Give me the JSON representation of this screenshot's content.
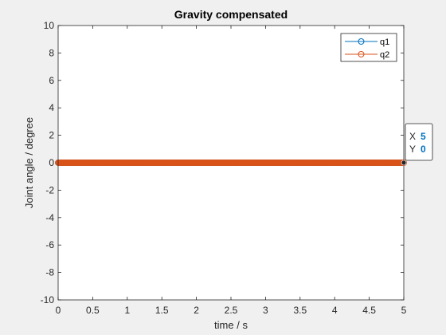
{
  "chart_data": {
    "type": "line",
    "title": "Gravity compensated",
    "xlabel": "time / s",
    "ylabel": "Joint angle / degree",
    "xlim": [
      0,
      5
    ],
    "ylim": [
      -10,
      10
    ],
    "xticks": [
      0,
      0.5,
      1,
      1.5,
      2,
      2.5,
      3,
      3.5,
      4,
      4.5,
      5
    ],
    "xtick_labels": [
      "0",
      "0.5",
      "1",
      "1.5",
      "2",
      "2.5",
      "3",
      "3.5",
      "4",
      "4.5",
      "5"
    ],
    "yticks": [
      -10,
      -8,
      -6,
      -4,
      -2,
      0,
      2,
      4,
      6,
      8,
      10
    ],
    "ytick_labels": [
      "-10",
      "-8",
      "-6",
      "-4",
      "-2",
      "0",
      "2",
      "4",
      "6",
      "8",
      "10"
    ],
    "grid": false,
    "legend_position": "top-right",
    "series": [
      {
        "name": "q1",
        "color": "#0072bd",
        "marker": "circle",
        "x_start": 0,
        "x_end": 5,
        "x_step": 0.01,
        "y_constant": 0
      },
      {
        "name": "q2",
        "color": "#d95319",
        "marker": "circle",
        "x_start": 0,
        "x_end": 5,
        "x_step": 0.01,
        "y_constant": 0
      }
    ],
    "datatip": {
      "x_label": "X",
      "x_value": "5",
      "y_label": "Y",
      "y_value": "0",
      "x": 5,
      "y": 0
    }
  },
  "colors": {
    "figure_background": "#f0f0f0",
    "axes_background": "#ffffff",
    "axis_color": "#262626",
    "datatip_value": "#0072bd"
  }
}
